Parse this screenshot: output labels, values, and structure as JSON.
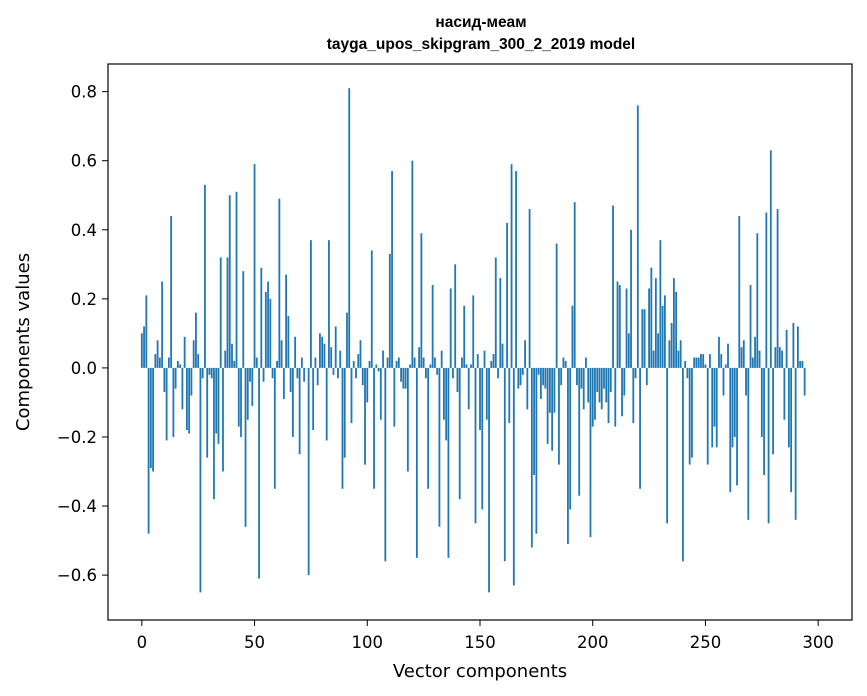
{
  "chart_data": {
    "type": "bar",
    "title": "насид-меам",
    "subtitle": "tayga_upos_skipgram_300_2_2019 model",
    "xlabel": "Vector components",
    "ylabel": "Components values",
    "xlim": [
      -15,
      315
    ],
    "ylim": [
      -0.73,
      0.88
    ],
    "xticks": [
      0,
      50,
      100,
      150,
      200,
      250,
      300
    ],
    "yticks": [
      -0.6,
      -0.4,
      -0.2,
      0.0,
      0.2,
      0.4,
      0.6,
      0.8
    ],
    "ytick_labels": [
      "−0.6",
      "−0.4",
      "−0.2",
      "0.0",
      "0.2",
      "0.4",
      "0.6",
      "0.8"
    ],
    "bar_color": "#1f77b4",
    "grid": false,
    "values": [
      0.1,
      0.12,
      0.21,
      -0.48,
      -0.29,
      -0.3,
      0.04,
      0.08,
      0.03,
      0.25,
      -0.07,
      -0.21,
      0.03,
      0.44,
      -0.2,
      -0.06,
      0.02,
      0.01,
      -0.12,
      0.09,
      -0.18,
      -0.19,
      -0.08,
      0.08,
      0.16,
      0.04,
      -0.65,
      -0.03,
      0.53,
      -0.26,
      -0.02,
      -0.03,
      -0.38,
      -0.19,
      -0.22,
      0.32,
      -0.3,
      0.05,
      0.32,
      0.5,
      0.07,
      0.02,
      0.51,
      -0.17,
      -0.2,
      0.28,
      -0.46,
      -0.15,
      -0.04,
      -0.11,
      0.59,
      0.03,
      -0.61,
      0.29,
      -0.04,
      0.22,
      0.25,
      0.2,
      -0.03,
      -0.35,
      0.02,
      0.49,
      0.08,
      -0.09,
      0.27,
      0.15,
      -0.07,
      -0.2,
      0.09,
      -0.03,
      -0.25,
      0.03,
      -0.04,
      0.0,
      -0.6,
      0.37,
      -0.18,
      0.03,
      -0.05,
      0.1,
      0.09,
      0.07,
      -0.21,
      0.37,
      0.06,
      -0.02,
      0.12,
      -0.03,
      0.05,
      -0.35,
      -0.26,
      0.16,
      0.81,
      -0.16,
      0.02,
      -0.03,
      0.04,
      0.08,
      -0.05,
      -0.28,
      -0.1,
      0.02,
      0.34,
      -0.35,
      0.01,
      -0.01,
      -0.15,
      0.05,
      -0.56,
      0.03,
      0.33,
      0.57,
      -0.17,
      0.02,
      0.03,
      -0.04,
      -0.06,
      -0.06,
      -0.3,
      0.01,
      0.6,
      0.03,
      -0.55,
      0.06,
      0.39,
      0.03,
      -0.03,
      -0.35,
      0.01,
      0.24,
      0.03,
      -0.02,
      -0.46,
      0.05,
      -0.15,
      -0.21,
      -0.55,
      0.23,
      -0.03,
      0.3,
      -0.07,
      -0.38,
      0.03,
      0.18,
      0.01,
      -0.12,
      0.01,
      0.21,
      -0.45,
      0.04,
      -0.18,
      -0.41,
      0.05,
      -0.15,
      -0.65,
      0.02,
      0.04,
      0.32,
      -0.03,
      0.26,
      0.07,
      -0.56,
      0.42,
      -0.16,
      0.59,
      -0.63,
      0.57,
      -0.06,
      -0.05,
      -0.02,
      0.08,
      -0.12,
      0.46,
      -0.52,
      -0.31,
      -0.48,
      -0.02,
      -0.09,
      -0.05,
      -0.06,
      -0.22,
      -0.13,
      -0.24,
      -0.13,
      0.36,
      -0.28,
      -0.05,
      0.03,
      0.02,
      -0.51,
      -0.41,
      0.18,
      0.48,
      -0.05,
      -0.37,
      -0.06,
      -0.12,
      0.03,
      -0.1,
      -0.49,
      -0.17,
      -0.15,
      -0.07,
      -0.1,
      -0.12,
      -0.06,
      -0.1,
      -0.16,
      -0.07,
      0.47,
      -0.17,
      0.25,
      0.24,
      -0.14,
      -0.08,
      0.23,
      0.1,
      0.4,
      -0.16,
      -0.03,
      0.76,
      -0.35,
      0.17,
      0.17,
      -0.05,
      0.23,
      0.29,
      0.05,
      0.26,
      0.1,
      0.37,
      0.18,
      0.21,
      -0.45,
      0.08,
      0.13,
      0.26,
      0.22,
      0.05,
      0.08,
      -0.56,
      0.02,
      -0.03,
      -0.28,
      -0.26,
      0.03,
      0.03,
      0.03,
      0.04,
      0.04,
      0.01,
      -0.28,
      0.04,
      -0.23,
      -0.17,
      -0.23,
      0.09,
      0.04,
      -0.08,
      0.01,
      0.07,
      -0.36,
      -0.23,
      -0.2,
      -0.34,
      0.44,
      0.06,
      0.08,
      -0.08,
      -0.44,
      0.24,
      0.03,
      0.09,
      0.39,
      0.05,
      -0.2,
      -0.31,
      0.45,
      -0.45,
      0.63,
      -0.25,
      0.06,
      0.46,
      0.06,
      0.05,
      -0.15,
      0.11,
      -0.23,
      -0.36,
      0.13,
      -0.44,
      0.12,
      0.02,
      0.02,
      -0.08
    ]
  }
}
